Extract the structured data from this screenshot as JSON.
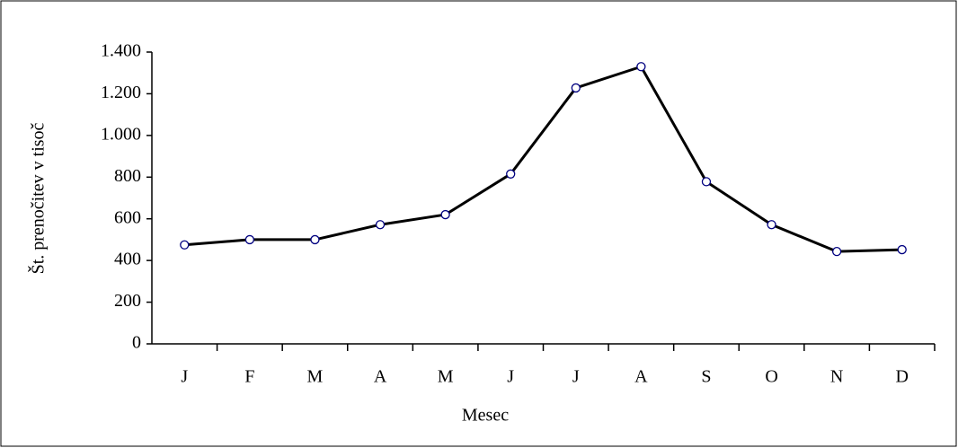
{
  "chart_data": {
    "type": "line",
    "categories": [
      "J",
      "F",
      "M",
      "A",
      "M",
      "J",
      "J",
      "A",
      "S",
      "O",
      "N",
      "D"
    ],
    "series": [
      {
        "name": "Št. prenočitev",
        "color": "#000000",
        "values": [
          475,
          500,
          500,
          572,
          620,
          815,
          1228,
          1330,
          778,
          572,
          443,
          452
        ]
      }
    ],
    "marker_stroke": "#000080",
    "marker_fill": "#ffffff",
    "ylim": [
      0,
      1400
    ],
    "yticks": [
      0,
      200,
      400,
      600,
      800,
      {
        "value": 1000,
        "label": "1.000"
      },
      {
        "value": 1200,
        "label": "1.200"
      },
      {
        "value": 1400,
        "label": "1.400"
      }
    ],
    "xlabel": "Mesec",
    "ylabel": "Št. prenočitev v tisoč",
    "grid": false
  }
}
